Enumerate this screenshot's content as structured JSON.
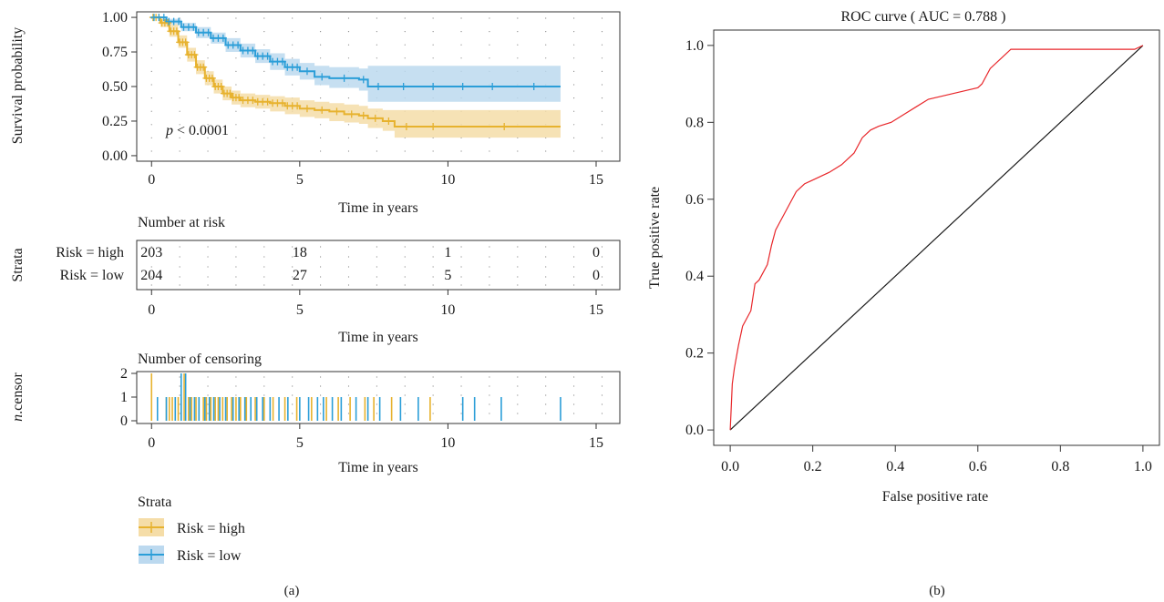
{
  "colors": {
    "high": "#E7B22E",
    "low": "#2B9ED8",
    "high_fill": "#F5DDA8",
    "low_fill": "#BCD9EF",
    "roc": "#E8272B"
  },
  "panel_a": {
    "label": "(a)",
    "strata_title": "Strata",
    "legend": [
      "Risk = high",
      "Risk = low"
    ],
    "km": {
      "ylabel": "Survival probability",
      "xlabel": "Time in years",
      "pvalue_prefix": "p",
      "pvalue_rest": " < 0.0001",
      "yticks": [
        "0.00",
        "0.25",
        "0.50",
        "0.75",
        "1.00"
      ],
      "xticks": [
        "0",
        "5",
        "10",
        "15"
      ]
    },
    "risk_table": {
      "title": "Number at risk",
      "ylabel": "Strata",
      "xlabel": "Time in years",
      "row_labels": [
        "Risk = high",
        "Risk = low"
      ],
      "times": [
        0,
        5,
        10,
        15
      ],
      "high": [
        "203",
        "18",
        "1",
        "0"
      ],
      "low": [
        "204",
        "27",
        "5",
        "0"
      ]
    },
    "censor": {
      "title": "Number of censoring",
      "ylabel_italic": "n",
      "ylabel_rest": ".censor",
      "yticks": [
        "0",
        "1",
        "2"
      ],
      "xlabel": "Time in years"
    }
  },
  "panel_b": {
    "label": "(b)",
    "title": "ROC curve ( AUC = 0.788 )",
    "xlabel": "False positive rate",
    "ylabel": "True positive rate",
    "xticks": [
      "0.0",
      "0.2",
      "0.4",
      "0.6",
      "0.8",
      "1.0"
    ],
    "yticks": [
      "0.0",
      "0.2",
      "0.4",
      "0.6",
      "0.8",
      "1.0"
    ]
  },
  "chart_data": [
    {
      "type": "line",
      "title": "",
      "xlabel": "Time in years",
      "ylabel": "Survival probability",
      "xlim": [
        -0.5,
        15.8
      ],
      "ylim": [
        -0.04,
        1.04
      ],
      "annotation": "p < 0.0001",
      "series": [
        {
          "name": "Risk = high",
          "x": [
            0,
            0.3,
            0.6,
            0.9,
            1.2,
            1.5,
            1.8,
            2.1,
            2.4,
            2.7,
            3.0,
            3.5,
            4.0,
            4.5,
            5.0,
            5.5,
            6.0,
            6.5,
            7.0,
            7.3,
            7.8,
            8.2,
            9.0,
            10.0,
            13.8
          ],
          "y": [
            1.0,
            0.96,
            0.9,
            0.82,
            0.73,
            0.64,
            0.56,
            0.5,
            0.45,
            0.42,
            0.4,
            0.39,
            0.38,
            0.36,
            0.34,
            0.33,
            0.32,
            0.3,
            0.29,
            0.27,
            0.25,
            0.21,
            0.21,
            0.21,
            0.21
          ],
          "lower": [
            1.0,
            0.93,
            0.86,
            0.78,
            0.68,
            0.59,
            0.51,
            0.45,
            0.4,
            0.37,
            0.35,
            0.34,
            0.32,
            0.3,
            0.28,
            0.27,
            0.25,
            0.24,
            0.23,
            0.2,
            0.18,
            0.13,
            0.13,
            0.13,
            0.13
          ],
          "upper": [
            1.0,
            0.99,
            0.95,
            0.87,
            0.78,
            0.69,
            0.61,
            0.55,
            0.5,
            0.47,
            0.45,
            0.44,
            0.43,
            0.42,
            0.4,
            0.39,
            0.38,
            0.37,
            0.36,
            0.34,
            0.33,
            0.33,
            0.33,
            0.33,
            0.33
          ]
        },
        {
          "name": "Risk = low",
          "x": [
            0,
            0.5,
            1.0,
            1.5,
            2.0,
            2.5,
            3.0,
            3.5,
            4.0,
            4.5,
            5.0,
            5.5,
            6.0,
            7.0,
            7.3,
            8.0,
            9.0,
            10.0,
            11.0,
            12.0,
            13.8
          ],
          "y": [
            1.0,
            0.97,
            0.93,
            0.89,
            0.85,
            0.8,
            0.76,
            0.72,
            0.68,
            0.64,
            0.61,
            0.57,
            0.56,
            0.55,
            0.5,
            0.5,
            0.5,
            0.5,
            0.5,
            0.5,
            0.5
          ],
          "lower": [
            1.0,
            0.95,
            0.9,
            0.85,
            0.81,
            0.75,
            0.71,
            0.67,
            0.62,
            0.58,
            0.55,
            0.51,
            0.49,
            0.47,
            0.39,
            0.39,
            0.39,
            0.39,
            0.39,
            0.39,
            0.39
          ],
          "upper": [
            1.0,
            0.99,
            0.96,
            0.93,
            0.89,
            0.85,
            0.81,
            0.77,
            0.74,
            0.7,
            0.67,
            0.65,
            0.64,
            0.63,
            0.65,
            0.65,
            0.65,
            0.65,
            0.65,
            0.65,
            0.65
          ]
        }
      ]
    },
    {
      "type": "table",
      "title": "Number at risk",
      "columns": [
        0,
        5,
        10,
        15
      ],
      "rows": [
        {
          "name": "Risk = high",
          "values": [
            203,
            18,
            1,
            0
          ]
        },
        {
          "name": "Risk = low",
          "values": [
            204,
            27,
            5,
            0
          ]
        }
      ]
    },
    {
      "type": "bar",
      "title": "Number of censoring",
      "xlabel": "Time in years",
      "ylabel": "n.censor",
      "ylim": [
        0,
        2
      ],
      "series": [
        {
          "name": "Risk = high",
          "x": [
            0.0,
            0.5,
            0.6,
            0.7,
            0.8,
            0.9,
            1.0,
            1.1,
            1.25,
            1.35,
            1.5,
            1.6,
            1.75,
            1.85,
            2.0,
            2.15,
            2.25,
            2.4,
            2.55,
            2.7,
            2.85,
            3.0,
            3.2,
            3.5,
            3.8,
            4.1,
            4.5,
            4.9,
            5.4,
            5.9,
            6.3,
            6.7,
            7.2,
            7.5,
            8.1,
            9.4
          ],
          "values": [
            2,
            1,
            1,
            1,
            1,
            1,
            1,
            2,
            1,
            1,
            1,
            1,
            1,
            1,
            1,
            1,
            1,
            1,
            1,
            1,
            1,
            1,
            1,
            1,
            1,
            1,
            1,
            1,
            1,
            1,
            1,
            1,
            1,
            1,
            1,
            1
          ]
        },
        {
          "name": "Risk = low",
          "values": [
            1,
            1,
            1,
            2,
            2,
            1,
            1,
            1,
            1,
            1,
            1,
            1,
            1,
            1,
            1,
            1,
            1,
            1,
            1,
            1,
            1,
            1,
            1,
            1,
            1,
            1,
            1,
            1,
            1,
            1,
            1,
            1,
            1,
            1,
            1,
            1,
            1
          ],
          "x": [
            0.2,
            0.5,
            0.8,
            1.0,
            1.15,
            1.3,
            1.45,
            1.6,
            1.8,
            1.95,
            2.1,
            2.3,
            2.5,
            2.75,
            2.95,
            3.15,
            3.35,
            3.55,
            3.75,
            4.0,
            4.3,
            4.6,
            5.0,
            5.3,
            5.6,
            5.8,
            6.1,
            6.4,
            6.9,
            7.3,
            7.7,
            8.4,
            9.0,
            10.5,
            10.9,
            11.8,
            13.8
          ]
        }
      ]
    },
    {
      "type": "line",
      "title": "ROC curve ( AUC = 0.788 )",
      "xlabel": "False positive rate",
      "ylabel": "True positive rate",
      "xlim": [
        -0.04,
        1.04
      ],
      "ylim": [
        -0.04,
        1.04
      ],
      "series": [
        {
          "name": "ROC",
          "x": [
            0.0,
            0.005,
            0.01,
            0.02,
            0.03,
            0.05,
            0.06,
            0.07,
            0.09,
            0.1,
            0.11,
            0.12,
            0.14,
            0.16,
            0.18,
            0.2,
            0.22,
            0.24,
            0.27,
            0.3,
            0.32,
            0.34,
            0.36,
            0.39,
            0.42,
            0.45,
            0.48,
            0.52,
            0.56,
            0.6,
            0.61,
            0.63,
            0.66,
            0.68,
            0.72,
            0.8,
            0.9,
            0.98,
            1.0
          ],
          "y": [
            0.0,
            0.12,
            0.16,
            0.22,
            0.27,
            0.31,
            0.38,
            0.39,
            0.43,
            0.48,
            0.52,
            0.54,
            0.58,
            0.62,
            0.64,
            0.65,
            0.66,
            0.67,
            0.69,
            0.72,
            0.76,
            0.78,
            0.79,
            0.8,
            0.82,
            0.84,
            0.86,
            0.87,
            0.88,
            0.89,
            0.9,
            0.94,
            0.97,
            0.99,
            0.99,
            0.99,
            0.99,
            0.99,
            1.0
          ]
        },
        {
          "name": "chance",
          "x": [
            0,
            1
          ],
          "y": [
            0,
            1
          ]
        }
      ]
    }
  ]
}
